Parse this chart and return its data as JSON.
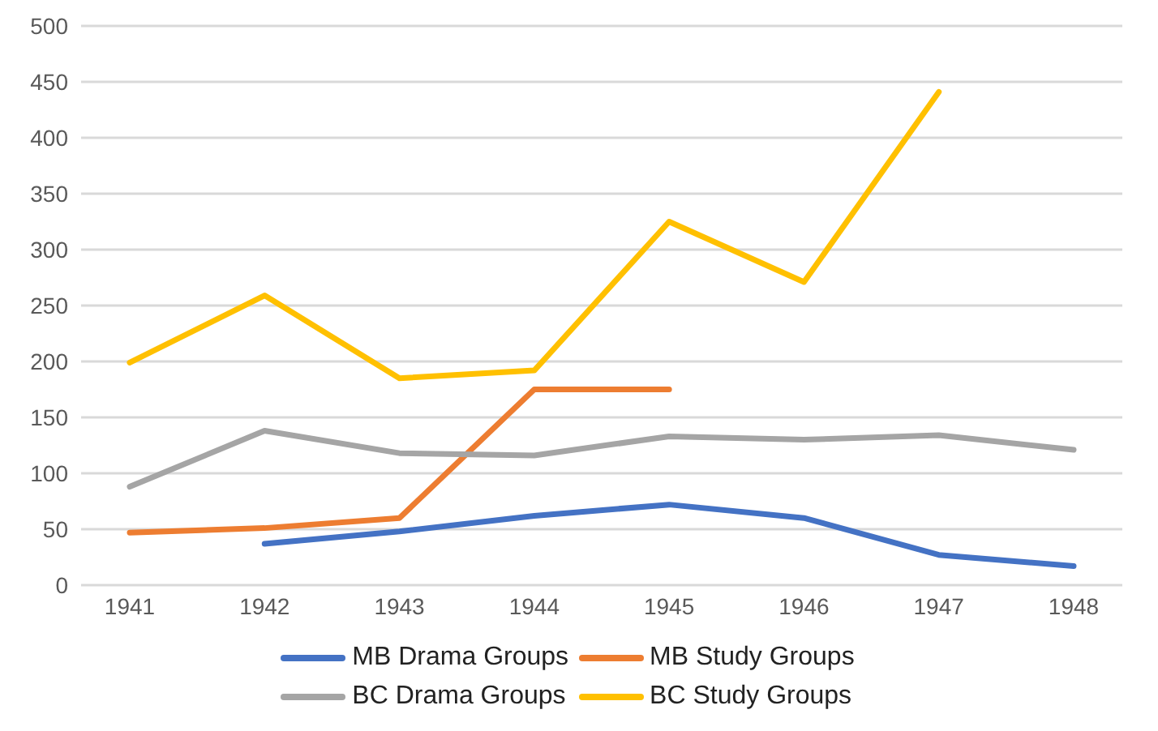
{
  "chart_data": {
    "type": "line",
    "categories": [
      "1941",
      "1942",
      "1943",
      "1944",
      "1945",
      "1946",
      "1947",
      "1948"
    ],
    "series": [
      {
        "name": "MB Drama Groups",
        "color": "#4472c4",
        "values": [
          null,
          37,
          48,
          62,
          72,
          60,
          27,
          17
        ]
      },
      {
        "name": "MB Study Groups",
        "color": "#ed7d31",
        "values": [
          47,
          51,
          60,
          175,
          175,
          null,
          null,
          null
        ]
      },
      {
        "name": "BC Drama Groups",
        "color": "#a5a5a5",
        "values": [
          88,
          138,
          118,
          116,
          133,
          130,
          134,
          121
        ]
      },
      {
        "name": "BC Study Groups",
        "color": "#ffc000",
        "values": [
          199,
          259,
          185,
          192,
          325,
          271,
          441,
          null
        ]
      }
    ],
    "ylim": [
      0,
      500
    ],
    "yticks": [
      0,
      50,
      100,
      150,
      200,
      250,
      300,
      350,
      400,
      450,
      500
    ],
    "grid": "y",
    "legend": "bottom",
    "marker": "none",
    "line_style": "solid"
  }
}
